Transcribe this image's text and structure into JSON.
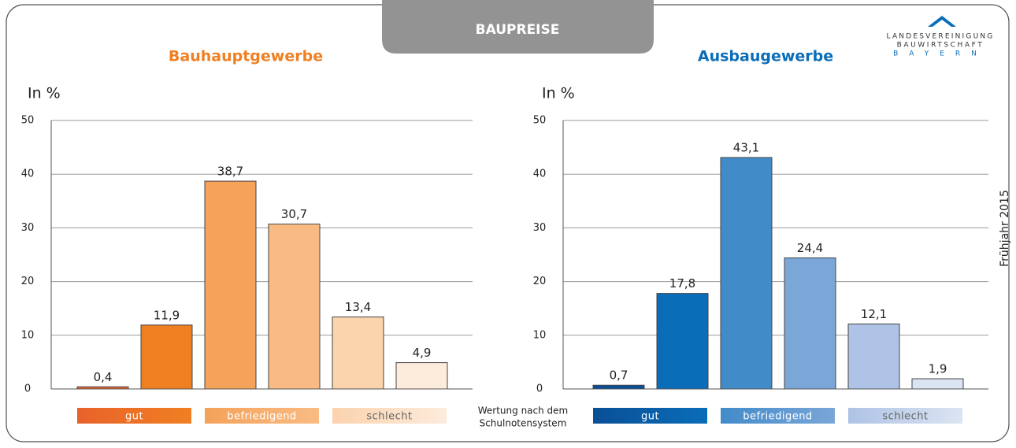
{
  "header": {
    "title": "BAUPREISE"
  },
  "logo": {
    "lines": [
      "LANDESVEREINIGUNG",
      "BAUWIRTSCHAFT",
      "BAYERN"
    ]
  },
  "side_label": "Frühjahr 2015",
  "legend_caption": [
    "Wertung nach dem",
    "Schulnotensystem"
  ],
  "chart_data": [
    {
      "type": "bar",
      "title": "Bauhauptgewerbe",
      "title_color": "#f07f22",
      "y_label": "In %",
      "categories": [
        null,
        null,
        null,
        null,
        null,
        null
      ],
      "values": [
        0.4,
        11.9,
        38.7,
        30.7,
        13.4,
        4.9
      ],
      "value_labels": [
        "0,4",
        "11,9",
        "38,7",
        "30,7",
        "13,4",
        "4,9"
      ],
      "colors": [
        "#e8622a",
        "#f07f22",
        "#f5a25a",
        "#f9bb83",
        "#fbd3ad",
        "#fdebdc"
      ],
      "ylim": [
        0,
        50
      ],
      "yticks": [
        0,
        10,
        20,
        30,
        40,
        50
      ],
      "grid": true,
      "legend": [
        {
          "label": "gut",
          "colors": [
            "#e8622a",
            "#f07f22"
          ],
          "text_color": "#ffffff"
        },
        {
          "label": "befriedigend",
          "colors": [
            "#f5a25a",
            "#f9bb83"
          ],
          "text_color": "#ffffff"
        },
        {
          "label": "schlecht",
          "colors": [
            "#fbd3ad",
            "#fdebdc"
          ],
          "text_color": "#666666"
        }
      ]
    },
    {
      "type": "bar",
      "title": "Ausbaugewerbe",
      "title_color": "#0a6db8",
      "y_label": "In %",
      "categories": [
        null,
        null,
        null,
        null,
        null,
        null
      ],
      "values": [
        0.7,
        17.8,
        43.1,
        24.4,
        12.1,
        1.9
      ],
      "value_labels": [
        "0,7",
        "17,8",
        "43,1",
        "24,4",
        "12,1",
        "1,9"
      ],
      "colors": [
        "#0a4f96",
        "#0a6db8",
        "#428bc9",
        "#7aa6d8",
        "#aec3e5",
        "#dbe4f2"
      ],
      "ylim": [
        0,
        50
      ],
      "yticks": [
        0,
        10,
        20,
        30,
        40,
        50
      ],
      "grid": true,
      "legend": [
        {
          "label": "gut",
          "colors": [
            "#0a4f96",
            "#0a6db8"
          ],
          "text_color": "#ffffff"
        },
        {
          "label": "befriedigend",
          "colors": [
            "#428bc9",
            "#7aa6d8"
          ],
          "text_color": "#ffffff"
        },
        {
          "label": "schlecht",
          "colors": [
            "#aec3e5",
            "#dbe4f2"
          ],
          "text_color": "#666666"
        }
      ]
    }
  ]
}
